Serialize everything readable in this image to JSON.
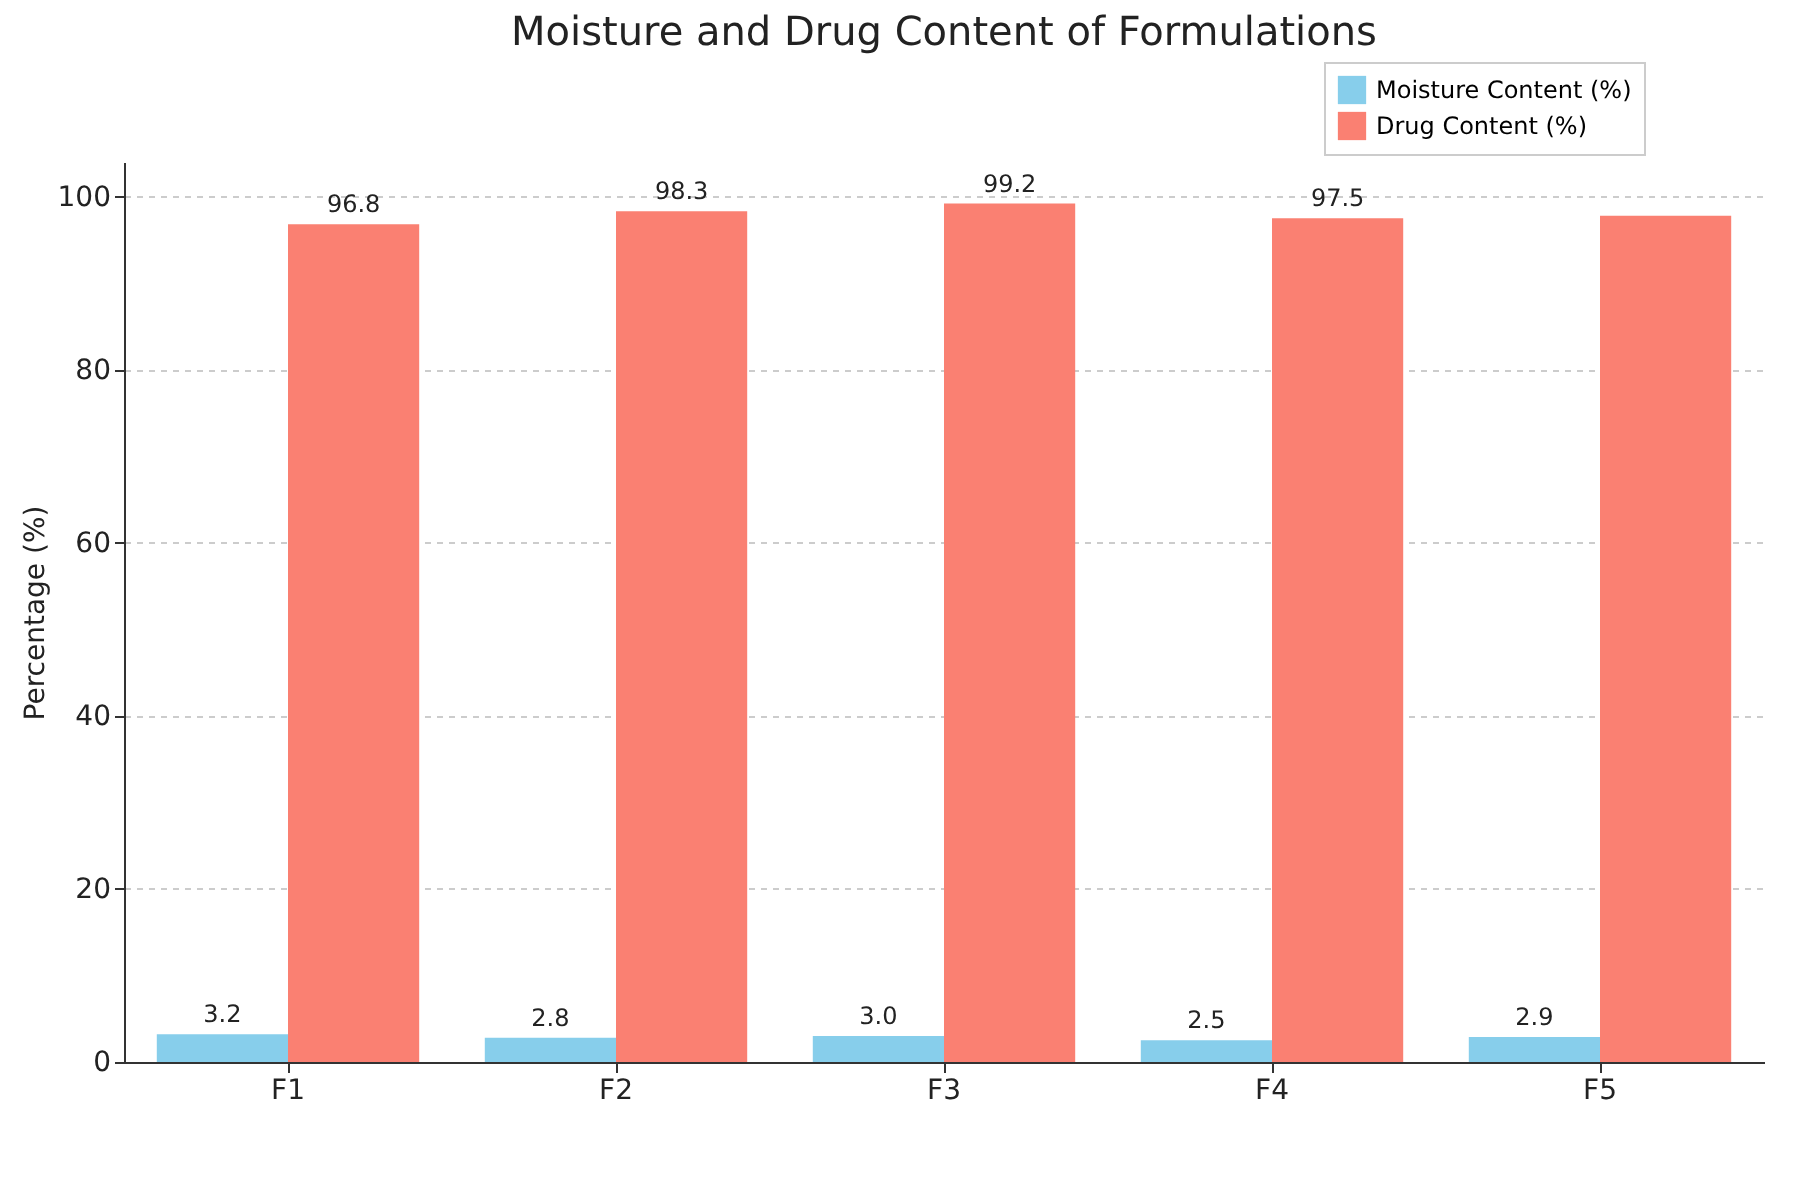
{
  "chart_data": {
    "type": "bar",
    "title": "Moisture and Drug Content of Formulations",
    "ylabel": "Percentage (%)",
    "categories": [
      "F1",
      "F2",
      "F3",
      "F4",
      "F5"
    ],
    "series": [
      {
        "name": "Moisture Content (%)",
        "color": "#87ceeb",
        "values": [
          3.2,
          2.8,
          3.0,
          2.5,
          2.9
        ],
        "value_labels": [
          "3.2",
          "2.8",
          "3.0",
          "2.5",
          "2.9"
        ]
      },
      {
        "name": "Drug Content (%)",
        "color": "#fa8072",
        "values": [
          96.8,
          98.3,
          99.2,
          97.5,
          97.8
        ],
        "value_labels": [
          "96.8",
          "98.3",
          "99.2",
          "97.5",
          null
        ]
      }
    ],
    "ylim": [
      0,
      104
    ],
    "yticks": [
      0,
      20,
      40,
      60,
      80,
      100
    ],
    "grid": "y",
    "legend": "top right"
  }
}
